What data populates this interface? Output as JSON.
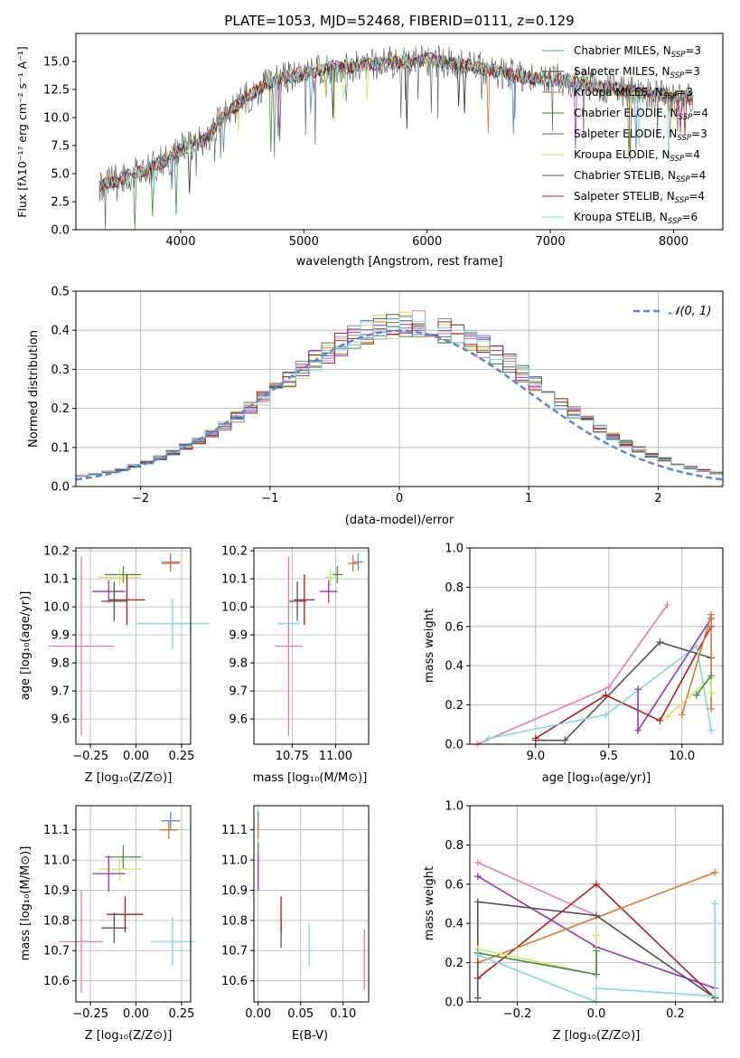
{
  "chart_data": [
    {
      "id": "spectrum",
      "type": "line",
      "title": "PLATE=1053, MJD=52468, FIBERID=0111, z=0.129",
      "xlabel": "wavelength [Angstrom, rest frame]",
      "ylabel": "Flux [fλ10⁻¹⁷ erg cm⁻² s⁻¹ A⁻¹]",
      "xlim": [
        3150,
        8400
      ],
      "ylim": [
        0,
        17.5
      ],
      "xticks": [
        "4000",
        "5000",
        "6000",
        "7000",
        "8000"
      ],
      "yticks": [
        "0.0",
        "2.5",
        "5.0",
        "7.5",
        "10.0",
        "12.5",
        "15.0"
      ],
      "grid": false,
      "legend_position": "right",
      "series": [
        {
          "name": "Chabrier MILES, N",
          "sub": "SSP",
          "suffix": "=3",
          "color": "#5b87d6"
        },
        {
          "name": "Salpeter MILES, N",
          "sub": "SSP",
          "suffix": "=3",
          "color": "#2f2f2f"
        },
        {
          "name": "Kroupa MILES, N",
          "sub": "SSP",
          "suffix": "=3",
          "color": "#d9782c"
        },
        {
          "name": "Chabrier ELODIE, N",
          "sub": "SSP",
          "suffix": "=4",
          "color": "#4a8a4a"
        },
        {
          "name": "Salpeter ELODIE, N",
          "sub": "SSP",
          "suffix": "=3",
          "color": "#9a32b8"
        },
        {
          "name": "Kroupa ELODIE, N",
          "sub": "SSP",
          "suffix": "=4",
          "color": "#d2e35a"
        },
        {
          "name": "Chabrier STELIB, N",
          "sub": "SSP",
          "suffix": "=4",
          "color": "#555555"
        },
        {
          "name": "Salpeter STELIB, N",
          "sub": "SSP",
          "suffix": "=4",
          "color": "#b01c1c"
        },
        {
          "name": "Kroupa STELIB, N",
          "sub": "SSP",
          "suffix": "=6",
          "color": "#7fd9e3"
        }
      ],
      "continuum": {
        "x": [
          3350,
          3500,
          3600,
          3700,
          3800,
          3900,
          4000,
          4100,
          4200,
          4300,
          4400,
          4500,
          4600,
          4700,
          4800,
          4900,
          5000,
          5200,
          5400,
          5600,
          5800,
          6000,
          6200,
          6400,
          6600,
          6800,
          7000,
          7200,
          7400,
          7600,
          7800,
          8000,
          8100
        ],
        "y": [
          3.9,
          4.5,
          5.0,
          5.2,
          5.8,
          6.3,
          7.2,
          7.5,
          8.0,
          9.5,
          10.5,
          11.5,
          12.3,
          13.0,
          13.5,
          13.7,
          13.9,
          14.4,
          14.6,
          14.8,
          15.0,
          15.2,
          14.8,
          14.5,
          14.0,
          13.6,
          13.4,
          13.2,
          12.8,
          12.4,
          12.1,
          11.9,
          11.8
        ]
      }
    },
    {
      "id": "residual-histogram",
      "type": "bar",
      "xlabel": "(data-model)/error",
      "ylabel": "Normed distribution",
      "xlim": [
        -2.5,
        2.5
      ],
      "ylim": [
        0,
        0.5
      ],
      "xticks": [
        "−2",
        "−1",
        "0",
        "1",
        "2"
      ],
      "yticks": [
        "0.0",
        "0.1",
        "0.2",
        "0.3",
        "0.4",
        "0.5"
      ],
      "grid": true,
      "legend_position": "top-right",
      "reference_curve": {
        "name": "𝒩(0, 1)",
        "color": "#5b87d6",
        "style": "dashed"
      },
      "bin_width": 0.1
    },
    {
      "id": "age-vs-Z",
      "type": "scatter",
      "xlabel": "Z [log₁₀(Z/Z⊙)]",
      "ylabel": "age  [log₁₀(age/yr)]",
      "xlim": [
        -0.33,
        0.3
      ],
      "ylim": [
        9.51,
        10.21
      ],
      "xticks": [
        "−0.25",
        "0.00",
        "0.25"
      ],
      "yticks": [
        "9.6",
        "9.7",
        "9.8",
        "9.9",
        "10.0",
        "10.1",
        "10.2"
      ],
      "grid": true,
      "points": [
        {
          "x": 0.19,
          "y": 10.16,
          "xerr": 0.05,
          "yerr": 0.03,
          "color": "#5b87d6"
        },
        {
          "x": 0.19,
          "y": 10.155,
          "xerr": 0.05,
          "yerr": 0.03,
          "color": "#d9782c"
        },
        {
          "x": -0.07,
          "y": 10.115,
          "xerr": 0.1,
          "yerr": 0.03,
          "color": "#4a8a4a"
        },
        {
          "x": -0.09,
          "y": 10.105,
          "xerr": 0.12,
          "yerr": 0.03,
          "color": "#d2e35a"
        },
        {
          "x": -0.15,
          "y": 10.055,
          "xerr": 0.09,
          "yerr": 0.04,
          "color": "#9a32b8"
        },
        {
          "x": -0.12,
          "y": 10.02,
          "xerr": 0.07,
          "yerr": 0.07,
          "color": "#555555"
        },
        {
          "x": -0.05,
          "y": 10.025,
          "xerr": 0.1,
          "yerr": 0.09,
          "color": "#b01c1c"
        },
        {
          "x": 0.2,
          "y": 9.94,
          "xerr": 0.2,
          "yerr": 0.09,
          "color": "#7fd9e3"
        },
        {
          "x": -0.3,
          "y": 9.86,
          "xerr": 0.18,
          "yerr": 0.32,
          "color": "#e07db8"
        }
      ]
    },
    {
      "id": "age-vs-mass",
      "type": "scatter",
      "xlabel": "mass [log₁₀(M/M⊙)]",
      "ylabel": "",
      "xlim": [
        10.53,
        11.19
      ],
      "ylim": [
        9.51,
        10.21
      ],
      "xticks": [
        "10.75",
        "11.00"
      ],
      "yticks": [
        "9.6",
        "9.7",
        "9.8",
        "9.9",
        "10.0",
        "10.1",
        "10.2"
      ],
      "grid": true,
      "points": [
        {
          "x": 11.13,
          "y": 10.16,
          "xerr": 0.03,
          "yerr": 0.03,
          "color": "#5b87d6"
        },
        {
          "x": 11.1,
          "y": 10.155,
          "xerr": 0.03,
          "yerr": 0.03,
          "color": "#d9782c"
        },
        {
          "x": 11.01,
          "y": 10.115,
          "xerr": 0.03,
          "yerr": 0.03,
          "color": "#4a8a4a"
        },
        {
          "x": 10.97,
          "y": 10.105,
          "xerr": 0.03,
          "yerr": 0.03,
          "color": "#d2e35a"
        },
        {
          "x": 10.96,
          "y": 10.055,
          "xerr": 0.05,
          "yerr": 0.04,
          "color": "#9a32b8"
        },
        {
          "x": 10.78,
          "y": 10.02,
          "xerr": 0.05,
          "yerr": 0.07,
          "color": "#555555"
        },
        {
          "x": 10.82,
          "y": 10.025,
          "xerr": 0.06,
          "yerr": 0.09,
          "color": "#b01c1c"
        },
        {
          "x": 10.73,
          "y": 9.94,
          "xerr": 0.06,
          "yerr": 0.09,
          "color": "#7fd9e3"
        },
        {
          "x": 10.73,
          "y": 9.86,
          "xerr": 0.08,
          "yerr": 0.32,
          "color": "#e07db8"
        }
      ]
    },
    {
      "id": "mass-weight-vs-age",
      "type": "line",
      "xlabel": "age  [log₁₀(age/yr)]",
      "ylabel": "mass weight",
      "xlim": [
        8.55,
        10.28
      ],
      "ylim": [
        0,
        1
      ],
      "xticks": [
        "9.0",
        "9.5",
        "10.0"
      ],
      "yticks": [
        "0.0",
        "0.2",
        "0.4",
        "0.6",
        "0.8",
        "1.0"
      ],
      "grid": true,
      "series": [
        {
          "color": "#e07db8",
          "x": [
            8.6,
            9.5,
            9.9
          ],
          "y": [
            0.0,
            0.29,
            0.71
          ]
        },
        {
          "color": "#555555",
          "x": [
            9.0,
            9.2,
            9.85,
            10.2
          ],
          "y": [
            0.02,
            0.02,
            0.52,
            0.44
          ]
        },
        {
          "color": "#b01c1c",
          "x": [
            9.0,
            9.48,
            9.85,
            10.2
          ],
          "y": [
            0.03,
            0.25,
            0.12,
            0.6
          ]
        },
        {
          "color": "#7fd9e3",
          "x": [
            8.68,
            9.48,
            10.1,
            10.2
          ],
          "y": [
            0.03,
            0.15,
            0.5,
            0.07
          ]
        },
        {
          "color": "#9a32b8",
          "x": [
            9.7,
            9.7,
            10.2
          ],
          "y": [
            0.28,
            0.07,
            0.64
          ]
        },
        {
          "color": "#d9782c",
          "x": [
            10.0,
            10.2,
            10.2
          ],
          "y": [
            0.15,
            0.66,
            0.18
          ]
        },
        {
          "color": "#d2e35a",
          "x": [
            9.9,
            10.2,
            10.2
          ],
          "y": [
            0.14,
            0.34,
            0.26
          ]
        },
        {
          "color": "#4a8a4a",
          "x": [
            10.1,
            10.2
          ],
          "y": [
            0.25,
            0.35
          ]
        }
      ]
    },
    {
      "id": "mass-vs-Z",
      "type": "scatter",
      "xlabel": "Z [log₁₀(Z/Z⊙)]",
      "ylabel": "mass [log₁₀(M/M⊙)]",
      "xlim": [
        -0.33,
        0.3
      ],
      "ylim": [
        10.53,
        11.18
      ],
      "xticks": [
        "−0.25",
        "0.00",
        "0.25"
      ],
      "yticks": [
        "10.6",
        "10.7",
        "10.8",
        "10.9",
        "11.0",
        "11.1"
      ],
      "grid": true,
      "points": [
        {
          "x": 0.19,
          "y": 11.13,
          "xerr": 0.05,
          "yerr": 0.03,
          "color": "#5b87d6"
        },
        {
          "x": 0.18,
          "y": 11.1,
          "xerr": 0.05,
          "yerr": 0.03,
          "color": "#d9782c"
        },
        {
          "x": -0.07,
          "y": 11.01,
          "xerr": 0.1,
          "yerr": 0.04,
          "color": "#4a8a4a"
        },
        {
          "x": -0.09,
          "y": 10.97,
          "xerr": 0.12,
          "yerr": 0.04,
          "color": "#d2e35a"
        },
        {
          "x": -0.15,
          "y": 10.955,
          "xerr": 0.09,
          "yerr": 0.06,
          "color": "#9a32b8"
        },
        {
          "x": -0.12,
          "y": 10.775,
          "xerr": 0.07,
          "yerr": 0.05,
          "color": "#555555"
        },
        {
          "x": -0.06,
          "y": 10.82,
          "xerr": 0.1,
          "yerr": 0.06,
          "color": "#b01c1c"
        },
        {
          "x": 0.2,
          "y": 10.73,
          "xerr": 0.12,
          "yerr": 0.08,
          "color": "#7fd9e3"
        },
        {
          "x": -0.3,
          "y": 10.73,
          "xerr": 0.12,
          "yerr": 0.17,
          "color": "#e07db8"
        }
      ]
    },
    {
      "id": "mass-vs-ebv",
      "type": "scatter",
      "xlabel": "E(B-V)",
      "ylabel": "",
      "xlim": [
        -0.005,
        0.13
      ],
      "ylim": [
        10.53,
        11.18
      ],
      "xticks": [
        "0.00",
        "0.05",
        "0.10"
      ],
      "yticks": [
        "10.6",
        "10.7",
        "10.8",
        "10.9",
        "11.0",
        "11.1"
      ],
      "grid": true,
      "points": [
        {
          "x": 0.0,
          "y": 11.13,
          "xerr": 0,
          "yerr": 0.03,
          "color": "#5b87d6"
        },
        {
          "x": 0.0,
          "y": 11.1,
          "xerr": 0,
          "yerr": 0.03,
          "color": "#d9782c"
        },
        {
          "x": 0.0,
          "y": 11.0,
          "xerr": 0,
          "yerr": 0.06,
          "color": "#4a8a4a"
        },
        {
          "x": 0.0,
          "y": 10.97,
          "xerr": 0,
          "yerr": 0.05,
          "color": "#d2e35a"
        },
        {
          "x": 0.0,
          "y": 10.96,
          "xerr": 0,
          "yerr": 0.06,
          "color": "#9a32b8"
        },
        {
          "x": 0.027,
          "y": 10.76,
          "xerr": 0,
          "yerr": 0.05,
          "color": "#555555"
        },
        {
          "x": 0.027,
          "y": 10.82,
          "xerr": 0,
          "yerr": 0.06,
          "color": "#b01c1c"
        },
        {
          "x": 0.06,
          "y": 10.72,
          "xerr": 0,
          "yerr": 0.07,
          "color": "#7fd9e3"
        },
        {
          "x": 0.125,
          "y": 10.67,
          "xerr": 0,
          "yerr": 0.1,
          "color": "#e07db8"
        }
      ]
    },
    {
      "id": "mass-weight-vs-Z",
      "type": "line",
      "xlabel": "Z [log₁₀(Z/Z⊙)]",
      "ylabel": "mass weight",
      "xlim": [
        -0.32,
        0.32
      ],
      "ylim": [
        0,
        1
      ],
      "xticks": [
        "−0.2",
        "0.0",
        "0.2"
      ],
      "yticks": [
        "0.0",
        "0.2",
        "0.4",
        "0.6",
        "0.8",
        "1.0"
      ],
      "grid": true,
      "series": [
        {
          "color": "#e07db8",
          "x": [
            -0.3,
            0.0,
            0.3
          ],
          "y": [
            0.71,
            0.44,
            0.02
          ]
        },
        {
          "color": "#9a32b8",
          "x": [
            -0.3,
            0.0,
            0.3
          ],
          "y": [
            0.64,
            0.28,
            0.07
          ]
        },
        {
          "color": "#b01c1c",
          "x": [
            -0.3,
            0.0,
            0.3
          ],
          "y": [
            0.12,
            0.6,
            0.02
          ]
        },
        {
          "color": "#d9782c",
          "x": [
            -0.3,
            0.3
          ],
          "y": [
            0.2,
            0.66
          ]
        },
        {
          "color": "#555555",
          "x": [
            -0.3,
            -0.3,
            0.0,
            0.3
          ],
          "y": [
            0.02,
            0.51,
            0.44,
            0.02
          ]
        },
        {
          "color": "#d2e35a",
          "x": [
            -0.3,
            0.0,
            0.0
          ],
          "y": [
            0.27,
            0.14,
            0.34
          ]
        },
        {
          "color": "#4a8a4a",
          "x": [
            -0.3,
            0.0,
            0.0
          ],
          "y": [
            0.25,
            0.14,
            0.26
          ]
        },
        {
          "color": "#7fd9e3",
          "x": [
            -0.3,
            0.0,
            0.0,
            0.3,
            0.3
          ],
          "y": [
            0.24,
            0.0,
            0.07,
            0.03,
            0.5
          ]
        }
      ]
    }
  ]
}
